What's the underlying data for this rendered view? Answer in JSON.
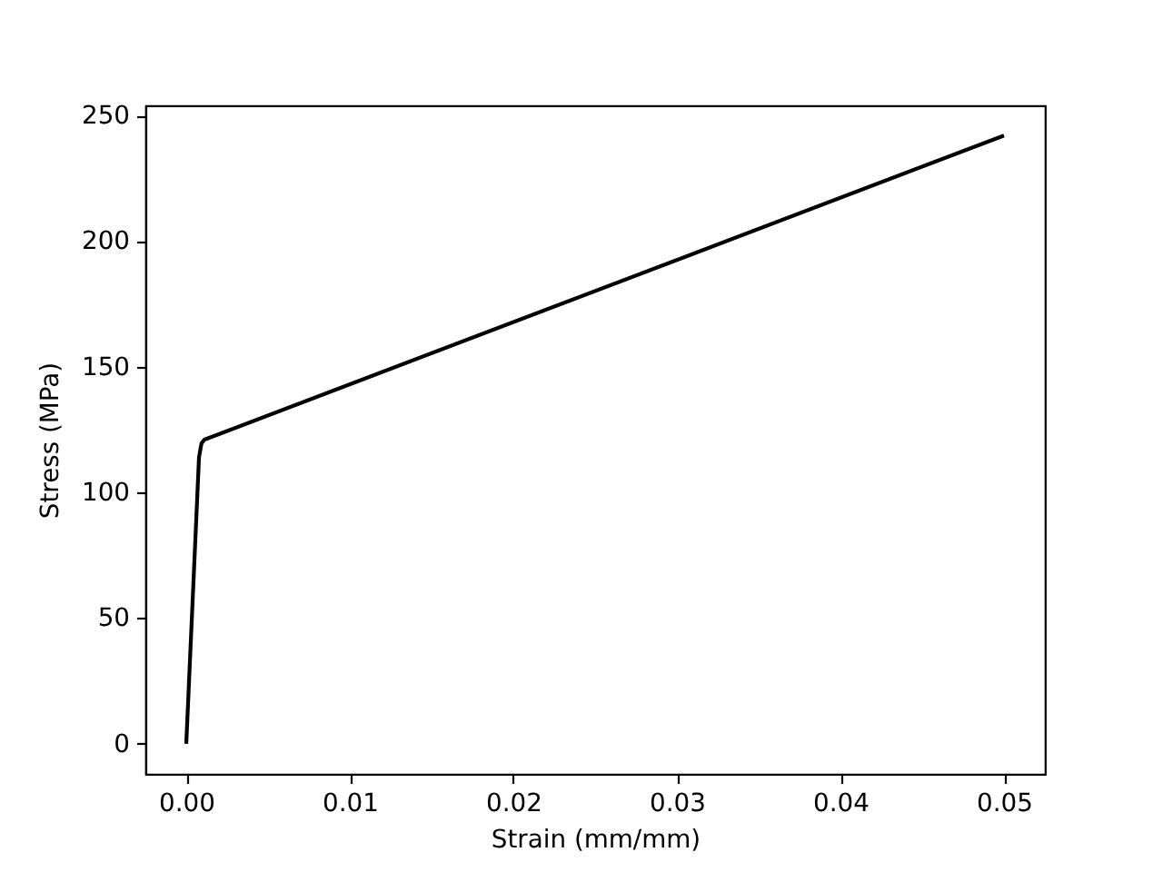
{
  "chart_data": {
    "type": "line",
    "xlabel": "Strain (mm/mm)",
    "ylabel": "Stress (MPa)",
    "x": [
      0,
      0.00078,
      0.00093,
      0.00111,
      0.05
    ],
    "series": [
      {
        "color": "#000000",
        "values": [
          0,
          114,
          119.5,
          121,
          242
        ]
      }
    ],
    "xlim": [
      -0.0025,
      0.0525
    ],
    "ylim": [
      -12,
      254
    ],
    "xticks": [
      {
        "value": 0,
        "label": "0.00"
      },
      0.01,
      0.02,
      0.03,
      0.04,
      0.05
    ],
    "yticks": [
      0,
      50,
      100,
      150,
      200,
      250
    ],
    "marker": "none",
    "line_style": "solid"
  }
}
